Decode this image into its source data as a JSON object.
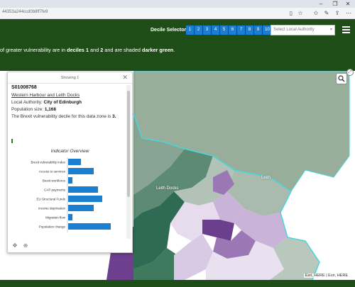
{
  "browser": {
    "url": "44353a244ccd0b8ff7fe9",
    "window_controls": [
      "–",
      "❐",
      "✕"
    ]
  },
  "header": {
    "decile_selector_label": "Decile Selector",
    "deciles": [
      "1",
      "2",
      "3",
      "4",
      "5",
      "6",
      "7",
      "8",
      "9",
      "10"
    ],
    "local_authority_placeholder": "Select Local Authority"
  },
  "banner": {
    "text_start": "of greater vulnerability are in ",
    "deciles_strong": "deciles 1",
    "text_and": " and ",
    "two_strong": "2",
    "text_shaded": " and are shaded ",
    "shade_strong": "darker green",
    "text_end": "."
  },
  "map": {
    "place_labels": [
      "Leith Docks",
      "Leith"
    ],
    "attribution": "Esri, HERE | Esri, HERE",
    "colors": {
      "light_green": "#98ae9b",
      "mid_green": "#5d8a73",
      "dark_green": "#2f6b54",
      "purple_dark": "#6b3f8c",
      "purple_mid": "#9b77b5",
      "purple_light": "#c9b3d9",
      "lavender": "#e6dcee",
      "outline_cyan": "#48d6de"
    }
  },
  "popup": {
    "count": "Showing 1",
    "zone_id": "S01008768",
    "zone_name": "Western Harbour and Leith Docks",
    "la_prefix": "Local Authority: ",
    "la_value": "City of Edinburgh",
    "pop_prefix": "Population size: ",
    "pop_value": "1,168",
    "decile_sentence": "The Brexit vulnerability decile for this data zone is",
    "decile_value": "3.",
    "chart_title": "Indicator Overview"
  },
  "chart_data": {
    "type": "bar",
    "title": "Indicator Overview",
    "categories": [
      "Brexit vulnerability index",
      "Access to services",
      "Brexit workforce",
      "CAP payments",
      "EU Structural Funds",
      "Income deprivation",
      "Migration flow",
      "Population change"
    ],
    "values": [
      3,
      6,
      1,
      7,
      8,
      6,
      1,
      10
    ],
    "xlim": [
      0,
      10
    ],
    "bar_color": "#1a7fd0"
  }
}
